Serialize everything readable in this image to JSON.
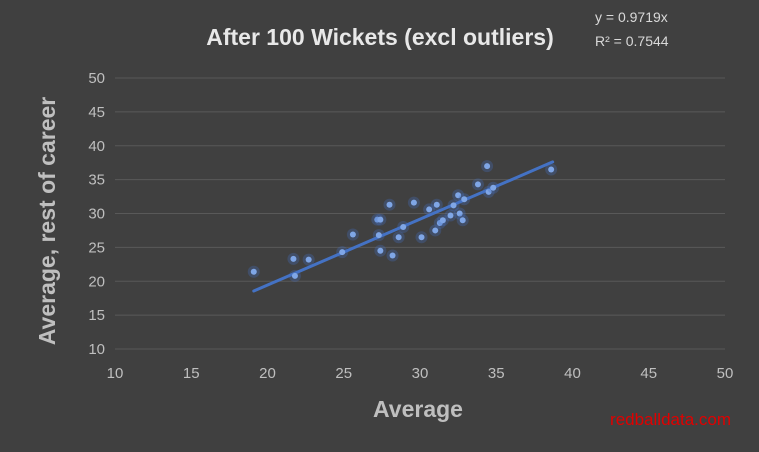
{
  "chart_data": {
    "type": "scatter",
    "title": "After 100 Wickets (excl outliers)",
    "xlabel": "Average",
    "ylabel": "Average, rest of career",
    "xlim": [
      10,
      50
    ],
    "ylim": [
      10,
      50
    ],
    "xticks": [
      10,
      15,
      20,
      25,
      30,
      35,
      40,
      45,
      50
    ],
    "yticks": [
      10,
      15,
      20,
      25,
      30,
      35,
      40,
      45,
      50
    ],
    "grid": "horizontal",
    "legend": "none",
    "colors": {
      "point": "#7fa6e6",
      "trendline": "#4472c4",
      "background": "#404040",
      "grid": "#595959"
    },
    "trendline": {
      "equation_label": "y = 0.9719x",
      "r2_label": "R² = 0.7544",
      "slope": 0.9719,
      "x_range": [
        19.1,
        38.7
      ]
    },
    "points": [
      {
        "x": 19.1,
        "y": 21.4
      },
      {
        "x": 21.7,
        "y": 23.3
      },
      {
        "x": 21.8,
        "y": 20.8
      },
      {
        "x": 22.7,
        "y": 23.2
      },
      {
        "x": 24.9,
        "y": 24.3
      },
      {
        "x": 25.6,
        "y": 26.9
      },
      {
        "x": 27.2,
        "y": 29.1
      },
      {
        "x": 27.4,
        "y": 29.1
      },
      {
        "x": 27.3,
        "y": 26.8
      },
      {
        "x": 27.4,
        "y": 24.5
      },
      {
        "x": 28.0,
        "y": 31.3
      },
      {
        "x": 28.2,
        "y": 23.8
      },
      {
        "x": 28.6,
        "y": 26.5
      },
      {
        "x": 28.9,
        "y": 28.0
      },
      {
        "x": 29.6,
        "y": 31.6
      },
      {
        "x": 30.1,
        "y": 26.5
      },
      {
        "x": 30.6,
        "y": 30.6
      },
      {
        "x": 31.0,
        "y": 27.5
      },
      {
        "x": 31.1,
        "y": 31.3
      },
      {
        "x": 31.3,
        "y": 28.6
      },
      {
        "x": 31.5,
        "y": 29.0
      },
      {
        "x": 32.0,
        "y": 29.7
      },
      {
        "x": 32.2,
        "y": 31.2
      },
      {
        "x": 32.5,
        "y": 32.7
      },
      {
        "x": 32.6,
        "y": 30.0
      },
      {
        "x": 32.8,
        "y": 29.0
      },
      {
        "x": 32.9,
        "y": 32.1
      },
      {
        "x": 33.8,
        "y": 34.3
      },
      {
        "x": 34.4,
        "y": 37.0
      },
      {
        "x": 34.5,
        "y": 33.2
      },
      {
        "x": 34.8,
        "y": 33.8
      },
      {
        "x": 38.6,
        "y": 36.5
      }
    ]
  },
  "watermark": "redballdata.com"
}
